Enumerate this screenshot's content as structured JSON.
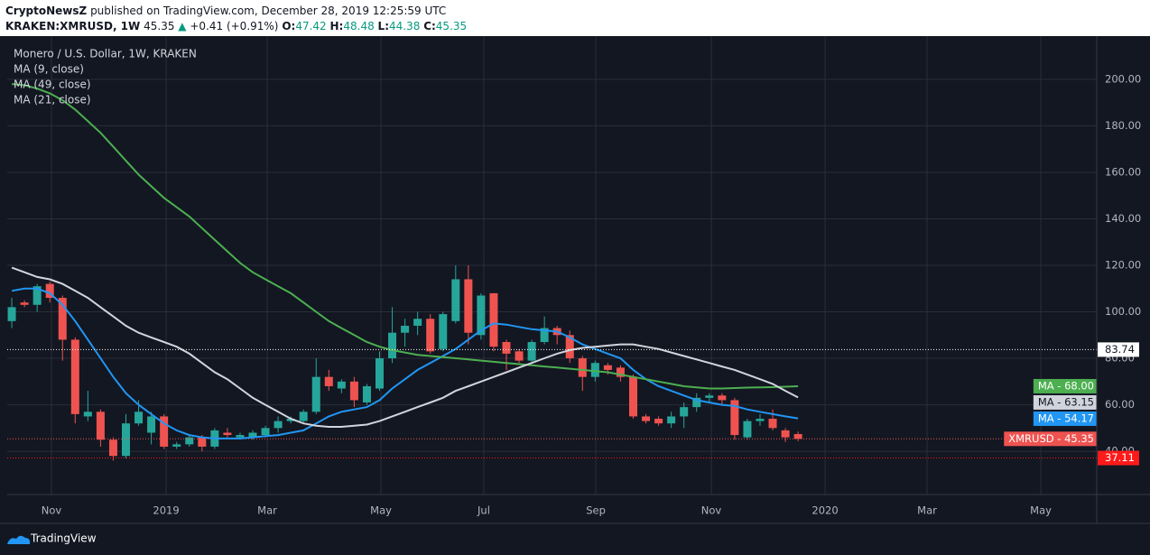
{
  "header": {
    "author": "CryptoNewsZ",
    "published": "published on TradingView.com, December 28, 2019 12:25:59 UTC",
    "symbol": "KRAKEN:XMRUSD, 1W",
    "arrow": "▲",
    "change": "+0.41 (+0.91%)",
    "ohlc_labels": [
      "O:",
      "H:",
      "L:",
      "C:"
    ]
  },
  "footer": {
    "brand": "TradingView"
  },
  "chart_data": {
    "type": "candlestick",
    "title": "Monero / U.S. Dollar, 1W, KRAKEN",
    "xlim": [
      -0.36,
      85.55
    ],
    "xticks": [
      {
        "value": 3.13,
        "label": "Nov"
      },
      {
        "value": 12.17,
        "label": "2019"
      },
      {
        "value": 20.14,
        "label": "Mar"
      },
      {
        "value": 29.11,
        "label": "May"
      },
      {
        "value": 37.22,
        "label": "Jul"
      },
      {
        "value": 46.05,
        "label": "Sep"
      },
      {
        "value": 55.16,
        "label": "Nov"
      },
      {
        "value": 64.13,
        "label": "2020"
      },
      {
        "value": 72.17,
        "label": "Mar"
      },
      {
        "value": 81.14,
        "label": "May"
      }
    ],
    "ylim": [
      21.4,
      218.6
    ],
    "yticks": [
      {
        "value": 40,
        "label": "40.00"
      },
      {
        "value": 60,
        "label": "60.00"
      },
      {
        "value": 80,
        "label": "80.00"
      },
      {
        "value": 100,
        "label": "100.00"
      },
      {
        "value": 120,
        "label": "120.00"
      },
      {
        "value": 140,
        "label": "140.00"
      },
      {
        "value": 160,
        "label": "160.00"
      },
      {
        "value": 180,
        "label": "180.00"
      },
      {
        "value": 200,
        "label": "200.00"
      }
    ],
    "grid": true,
    "price_lines": [
      {
        "value": 83.74,
        "color": "#ffffff"
      },
      {
        "value": 37.11,
        "color": "#ff1a1a"
      }
    ],
    "series": [
      {
        "type": "candlestick",
        "up_color": "#26a69a",
        "down_color": "#ef5350",
        "axis_label": "XMRUSD - 45.35",
        "open": [
          96,
          104,
          103,
          112,
          106,
          88,
          55,
          57,
          45,
          38,
          52,
          48,
          55,
          42,
          43,
          46,
          42,
          48,
          46,
          46,
          47,
          50,
          53,
          53,
          57,
          72,
          67,
          70,
          61,
          67,
          80,
          91,
          94,
          97,
          84,
          96,
          114,
          90,
          108,
          87,
          83,
          79,
          87,
          93,
          90,
          80,
          72,
          77,
          76,
          72,
          55,
          54,
          52,
          55,
          59,
          63,
          64,
          62,
          46,
          53,
          54,
          49,
          47.42
        ],
        "high": [
          106,
          105,
          112,
          113,
          107,
          89,
          66,
          58,
          46,
          56,
          62,
          57,
          56,
          44,
          47,
          47,
          50,
          50,
          48,
          49,
          51,
          55,
          55,
          58,
          80,
          75,
          71,
          72,
          69,
          83,
          102,
          97,
          100,
          99,
          100,
          120,
          120,
          108,
          108,
          88,
          84,
          88,
          98,
          94,
          92,
          81,
          79,
          78,
          77,
          73,
          56,
          55,
          57,
          61,
          65,
          65,
          65,
          63,
          54,
          56,
          58,
          50,
          48.48
        ],
        "low": [
          93,
          102,
          100,
          104,
          79,
          52,
          53,
          42,
          36,
          37,
          51,
          43,
          41,
          41,
          42,
          40,
          41,
          46,
          45,
          45,
          46,
          48,
          52,
          52,
          56,
          66,
          65,
          59,
          60,
          66,
          78,
          85,
          90,
          82,
          83,
          95,
          86,
          88,
          83,
          75,
          78,
          78,
          86,
          86,
          78,
          66,
          70,
          73,
          70,
          54,
          52,
          51,
          50,
          50,
          57,
          61,
          60,
          45,
          45,
          51,
          49,
          44,
          44.38
        ],
        "close": [
          102,
          103,
          111,
          106,
          88,
          56,
          57,
          45,
          38,
          52,
          57,
          55,
          42,
          43,
          46,
          42,
          49,
          47,
          47,
          48,
          50,
          53,
          54,
          57,
          72,
          68,
          70,
          62,
          68,
          80,
          91,
          94,
          97,
          83,
          99,
          114,
          91,
          107,
          85,
          82,
          79,
          87,
          93,
          90,
          80,
          72,
          78,
          75,
          72,
          55,
          53,
          52,
          55,
          59,
          63,
          64,
          62,
          47,
          53,
          54,
          50,
          46,
          45.35
        ]
      },
      {
        "type": "line",
        "name": "MA (9, close)",
        "color": "#2196f3",
        "axis_label": "MA - 54.17",
        "values": [
          109,
          110,
          110,
          108,
          103,
          96,
          88,
          80,
          72,
          65,
          60,
          56,
          52,
          49,
          47,
          46,
          45.5,
          45.5,
          45.5,
          46,
          46.5,
          47,
          48,
          49,
          52,
          55,
          57,
          58,
          59,
          62,
          67,
          71,
          75,
          78,
          81,
          84,
          88,
          92,
          95,
          94.5,
          93.5,
          92.5,
          92,
          91.5,
          89,
          86,
          84,
          82,
          80,
          75,
          71,
          68,
          66,
          64,
          62,
          61,
          60,
          59.5,
          58,
          57,
          56,
          55,
          54.17
        ]
      },
      {
        "type": "line",
        "name": "MA (49, close)",
        "color": "#4caf50",
        "axis_label": "MA - 68.00",
        "values": [
          198,
          197.5,
          196,
          194,
          191,
          187,
          182,
          177,
          171,
          165,
          159,
          154,
          149,
          145,
          141,
          136,
          131,
          126,
          121,
          117,
          114,
          111,
          108,
          104,
          100,
          96,
          93,
          90,
          87,
          85,
          83.5,
          82.5,
          81.5,
          81,
          80.5,
          80,
          79.5,
          79,
          78.5,
          78,
          77.5,
          77,
          76.5,
          76,
          75.5,
          75,
          74.5,
          74,
          73,
          72,
          71,
          70,
          69,
          68,
          67.5,
          67,
          67,
          67.2,
          67.4,
          67.5,
          67.6,
          67.8,
          68
        ]
      },
      {
        "type": "line",
        "name": "MA (21, close)",
        "color": "#d1d4dc",
        "axis_label": "MA - 63.15",
        "values": [
          119,
          117,
          115,
          114,
          112,
          109,
          106,
          102,
          98,
          94,
          91,
          89,
          87,
          85,
          82,
          78,
          74,
          71,
          67,
          63,
          60,
          57,
          54,
          52,
          51,
          50.5,
          50.5,
          51,
          51.5,
          53,
          55,
          57,
          59,
          61,
          63,
          66,
          68,
          70,
          72,
          74,
          76,
          78,
          80,
          82,
          83.5,
          84.5,
          85,
          85.5,
          86,
          86,
          85,
          84,
          82.5,
          81,
          79.5,
          78,
          76.5,
          75,
          73,
          71,
          69,
          66,
          63.15
        ]
      }
    ]
  }
}
